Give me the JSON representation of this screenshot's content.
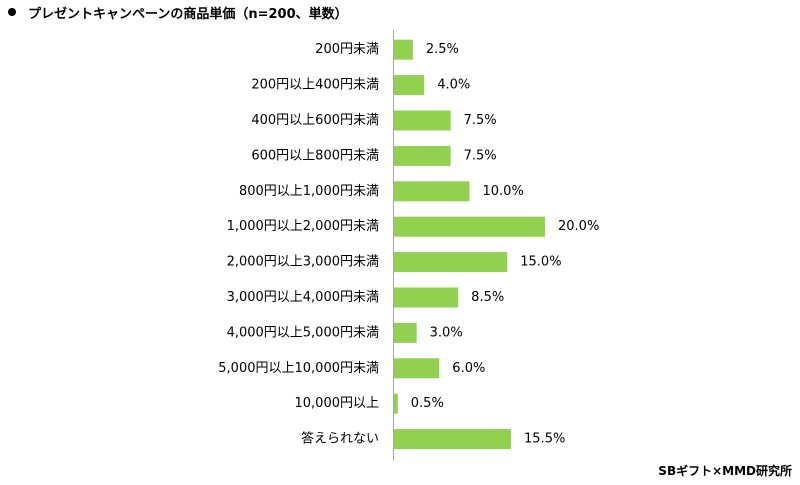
{
  "title": "プレゼントキャンペーンの商品単価（n=200、単数）",
  "source": "SBギフト×MMD研究所",
  "colors": {
    "bar": "#92d050",
    "axis": "#a6a6a6",
    "text": "#000000"
  },
  "chart_data": {
    "type": "bar",
    "orientation": "horizontal",
    "categories": [
      "200円未満",
      "200円以上400円未満",
      "400円以上600円未満",
      "600円以上800円未満",
      "800円以上1,000円未満",
      "1,000円以上2,000円未満",
      "2,000円以上3,000円未満",
      "3,000円以上4,000円未満",
      "4,000円以上5,000円未満",
      "5,000円以上10,000円未満",
      "10,000円以上",
      "答えられない"
    ],
    "values": [
      2.5,
      4.0,
      7.5,
      7.5,
      10.0,
      20.0,
      15.0,
      8.5,
      3.0,
      6.0,
      0.5,
      15.5
    ],
    "value_labels": [
      "2.5%",
      "4.0%",
      "7.5%",
      "7.5%",
      "10.0%",
      "20.0%",
      "15.0%",
      "8.5%",
      "3.0%",
      "6.0%",
      "0.5%",
      "15.5%"
    ],
    "unit": "%",
    "xlim": [
      0,
      20
    ],
    "grid": false,
    "legend": "none"
  }
}
